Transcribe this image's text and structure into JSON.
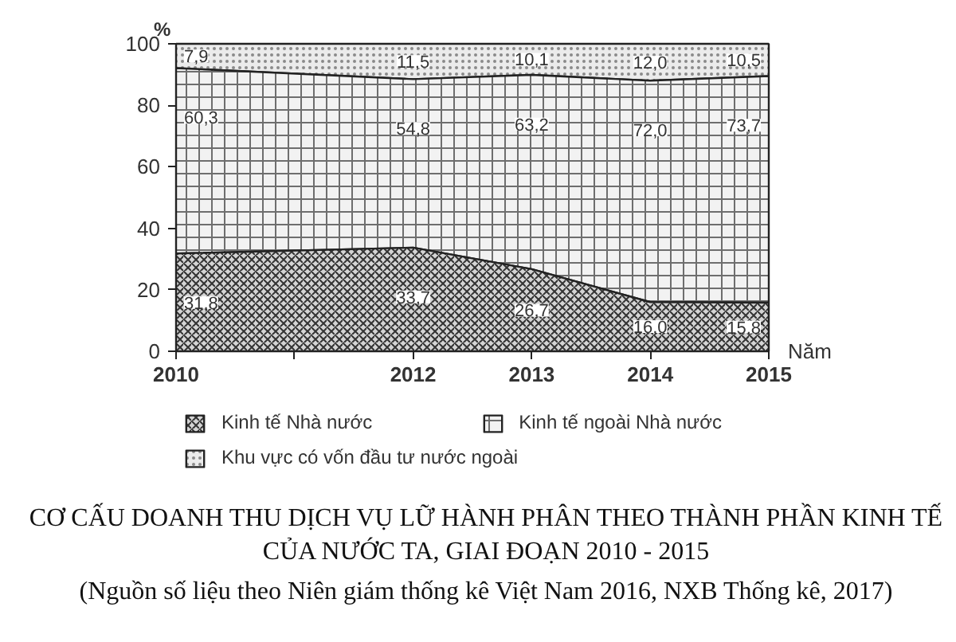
{
  "chart_data": {
    "type": "area",
    "stacked": true,
    "title": "CƠ CẤU DOANH THU DỊCH VỤ LỮ HÀNH PHÂN THEO THÀNH PHẦN KINH TẾ CỦA NƯỚC TA, GIAI ĐOẠN 2010 - 2015",
    "annotations": [
      "(Nguồn số liệu theo Niên giám thống kê Việt Nam 2016, NXB Thống kê, 2017)"
    ],
    "xlabel": "Năm",
    "ylabel": "%",
    "x": [
      2010,
      2012,
      2013,
      2014,
      2015
    ],
    "xlim": [
      2010,
      2015
    ],
    "xticks": [
      2010,
      {
        "value": 2011,
        "label": null
      },
      2012,
      2013,
      2014,
      2015
    ],
    "ylim": [
      0,
      100
    ],
    "yticks": [
      0,
      20,
      40,
      60,
      80,
      100
    ],
    "series": [
      {
        "name": "Kinh tế Nhà nước",
        "color": "#d4d4d4",
        "values": [
          31.8,
          33.7,
          26.7,
          16.0,
          15.8
        ],
        "value_labels": [
          "31,8",
          "33,7",
          "26,7",
          "16,0",
          "15,8"
        ]
      },
      {
        "name": "Kinh tế ngoài Nhà nước",
        "color": "#f2f2f2",
        "values": [
          60.3,
          54.8,
          63.2,
          72.0,
          73.7
        ],
        "value_labels": [
          "60,3",
          "54,8",
          "63,2",
          "72,0",
          "73,7"
        ]
      },
      {
        "name": "Khu vực có vốn đầu tư nước ngoài",
        "color": "#ebebeb",
        "values": [
          7.9,
          11.5,
          10.1,
          12.0,
          10.5
        ],
        "value_labels": [
          "7,9",
          "11,5",
          "10,1",
          "12,0",
          "10,5"
        ]
      }
    ],
    "grid": false,
    "legend": "bottom"
  }
}
